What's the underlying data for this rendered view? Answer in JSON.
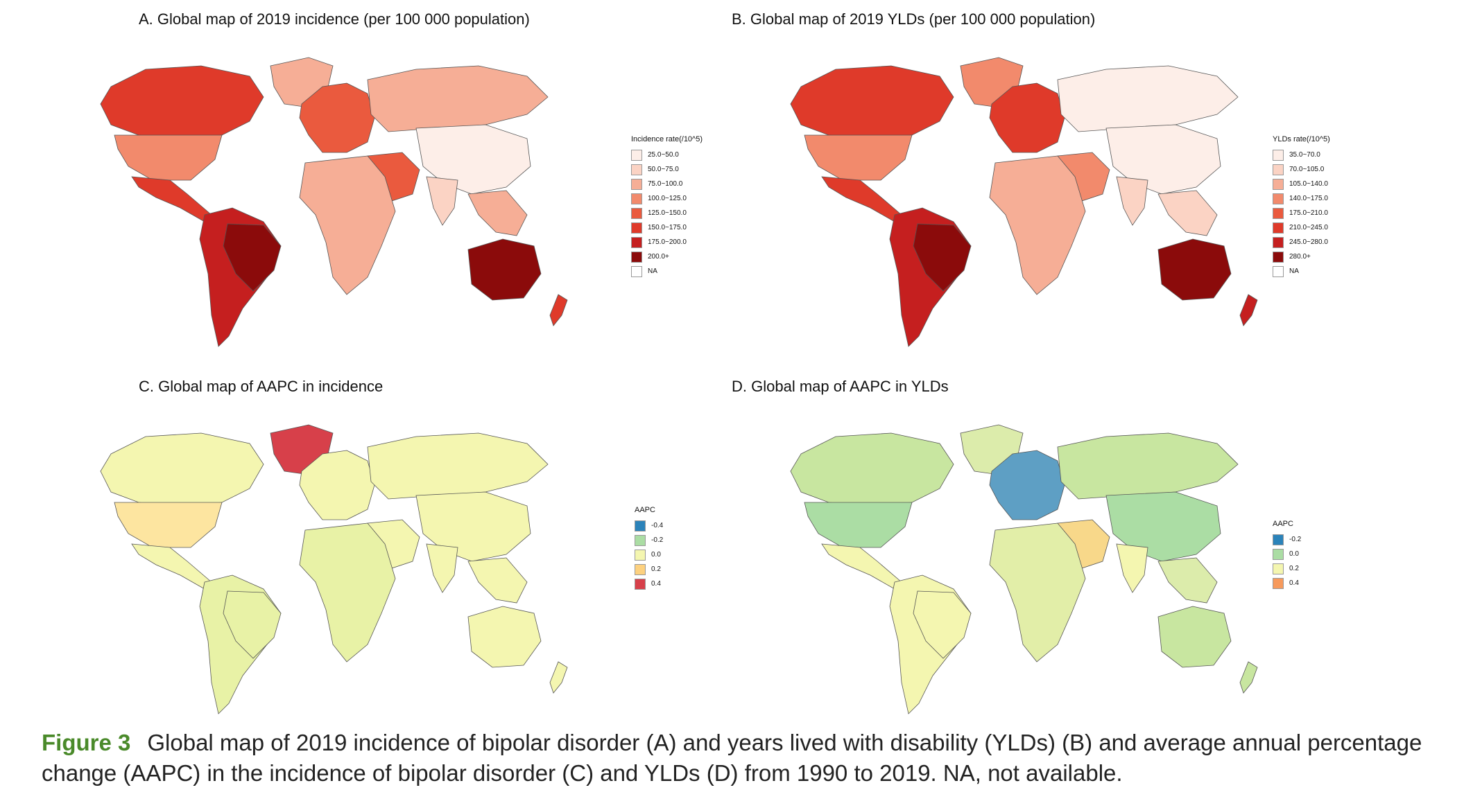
{
  "panels": {
    "a": {
      "title": "A. Global map of 2019 incidence (per 100 000 population)",
      "legend_title": "Incidence rate(/10^5)",
      "legend": [
        {
          "label": "25.0~50.0",
          "color": "#fdeee8"
        },
        {
          "label": "50.0~75.0",
          "color": "#fbd3c4"
        },
        {
          "label": "75.0~100.0",
          "color": "#f6ae96"
        },
        {
          "label": "100.0~125.0",
          "color": "#f28a6c"
        },
        {
          "label": "125.0~150.0",
          "color": "#ea5a3e"
        },
        {
          "label": "150.0~175.0",
          "color": "#df3a2a"
        },
        {
          "label": "175.0~200.0",
          "color": "#c51f1f"
        },
        {
          "label": "200.0+",
          "color": "#8b0b0b"
        },
        {
          "label": "NA",
          "color": "#ffffff"
        }
      ],
      "regions": {
        "north_america": "#f28a6c",
        "canada": "#df3a2a",
        "greenland": "#f6ae96",
        "mexico_central": "#df3a2a",
        "south_america": "#c51f1f",
        "brazil": "#8b0b0b",
        "europe": "#ea5a3e",
        "russia": "#f6ae96",
        "africa": "#f6ae96",
        "middle_east": "#ea5a3e",
        "asia": "#fdeee8",
        "india": "#fbd3c4",
        "southeast_asia": "#f6ae96",
        "australia": "#8b0b0b",
        "new_zealand": "#df3a2a"
      }
    },
    "b": {
      "title": "B. Global map of 2019 YLDs (per 100 000 population)",
      "legend_title": "YLDs rate(/10^5)",
      "legend": [
        {
          "label": "35.0~70.0",
          "color": "#fdeee8"
        },
        {
          "label": "70.0~105.0",
          "color": "#fbd3c4"
        },
        {
          "label": "105.0~140.0",
          "color": "#f6ae96"
        },
        {
          "label": "140.0~175.0",
          "color": "#f28a6c"
        },
        {
          "label": "175.0~210.0",
          "color": "#ea5a3e"
        },
        {
          "label": "210.0~245.0",
          "color": "#df3a2a"
        },
        {
          "label": "245.0~280.0",
          "color": "#c51f1f"
        },
        {
          "label": "280.0+",
          "color": "#8b0b0b"
        },
        {
          "label": "NA",
          "color": "#ffffff"
        }
      ],
      "regions": {
        "north_america": "#f28a6c",
        "canada": "#df3a2a",
        "greenland": "#f28a6c",
        "mexico_central": "#df3a2a",
        "south_america": "#c51f1f",
        "brazil": "#8b0b0b",
        "europe": "#df3a2a",
        "russia": "#fdeee8",
        "africa": "#f6ae96",
        "middle_east": "#f28a6c",
        "asia": "#fdeee8",
        "india": "#fbd3c4",
        "southeast_asia": "#fbd3c4",
        "australia": "#8b0b0b",
        "new_zealand": "#c51f1f"
      }
    },
    "c": {
      "title": "C. Global map of AAPC in incidence",
      "legend_title": "AAPC",
      "legend": [
        {
          "label": "-0.4",
          "color": "#2b83ba"
        },
        {
          "label": "-0.2",
          "color": "#abdda4"
        },
        {
          "label": "0.0",
          "color": "#f4f6b0"
        },
        {
          "label": "0.2",
          "color": "#fdd17f"
        },
        {
          "label": "0.4",
          "color": "#d7404a"
        }
      ],
      "regions": {
        "north_america": "#fde5a0",
        "canada": "#f4f6b0",
        "greenland": "#d7404a",
        "mexico_central": "#f4f6b0",
        "south_america": "#e8f2a6",
        "brazil": "#e8f2a6",
        "europe": "#f4f6b0",
        "russia": "#f4f6b0",
        "africa": "#e8f2a6",
        "middle_east": "#f4f6b0",
        "asia": "#f4f6b0",
        "india": "#f4f6b0",
        "southeast_asia": "#f4f6b0",
        "australia": "#f4f6b0",
        "new_zealand": "#f4f6b0"
      }
    },
    "d": {
      "title": "D. Global map of AAPC in YLDs",
      "legend_title": "AAPC",
      "legend": [
        {
          "label": "-0.2",
          "color": "#2b83ba"
        },
        {
          "label": "0.0",
          "color": "#abdda4"
        },
        {
          "label": "0.2",
          "color": "#f4f6b0"
        },
        {
          "label": "0.4",
          "color": "#f79a5c"
        }
      ],
      "regions": {
        "north_america": "#abdda4",
        "canada": "#c8e6a0",
        "greenland": "#dcecab",
        "mexico_central": "#f4f6b0",
        "south_america": "#f4f6b0",
        "brazil": "#f4f6b0",
        "europe": "#5e9fc4",
        "russia": "#c8e6a0",
        "africa": "#e2eea8",
        "middle_east": "#f8d88a",
        "asia": "#abdda4",
        "india": "#f4f6b0",
        "southeast_asia": "#dcecab",
        "australia": "#c8e6a0",
        "new_zealand": "#c8e6a0"
      }
    }
  },
  "caption": {
    "figure_label": "Figure 3",
    "text": "Global map of 2019 incidence of bipolar disorder (A) and years lived with disability (YLDs) (B) and average annual percentage change (AAPC) in the incidence of bipolar disorder (C) and YLDs (D) from 1990 to 2019. NA, not available."
  }
}
